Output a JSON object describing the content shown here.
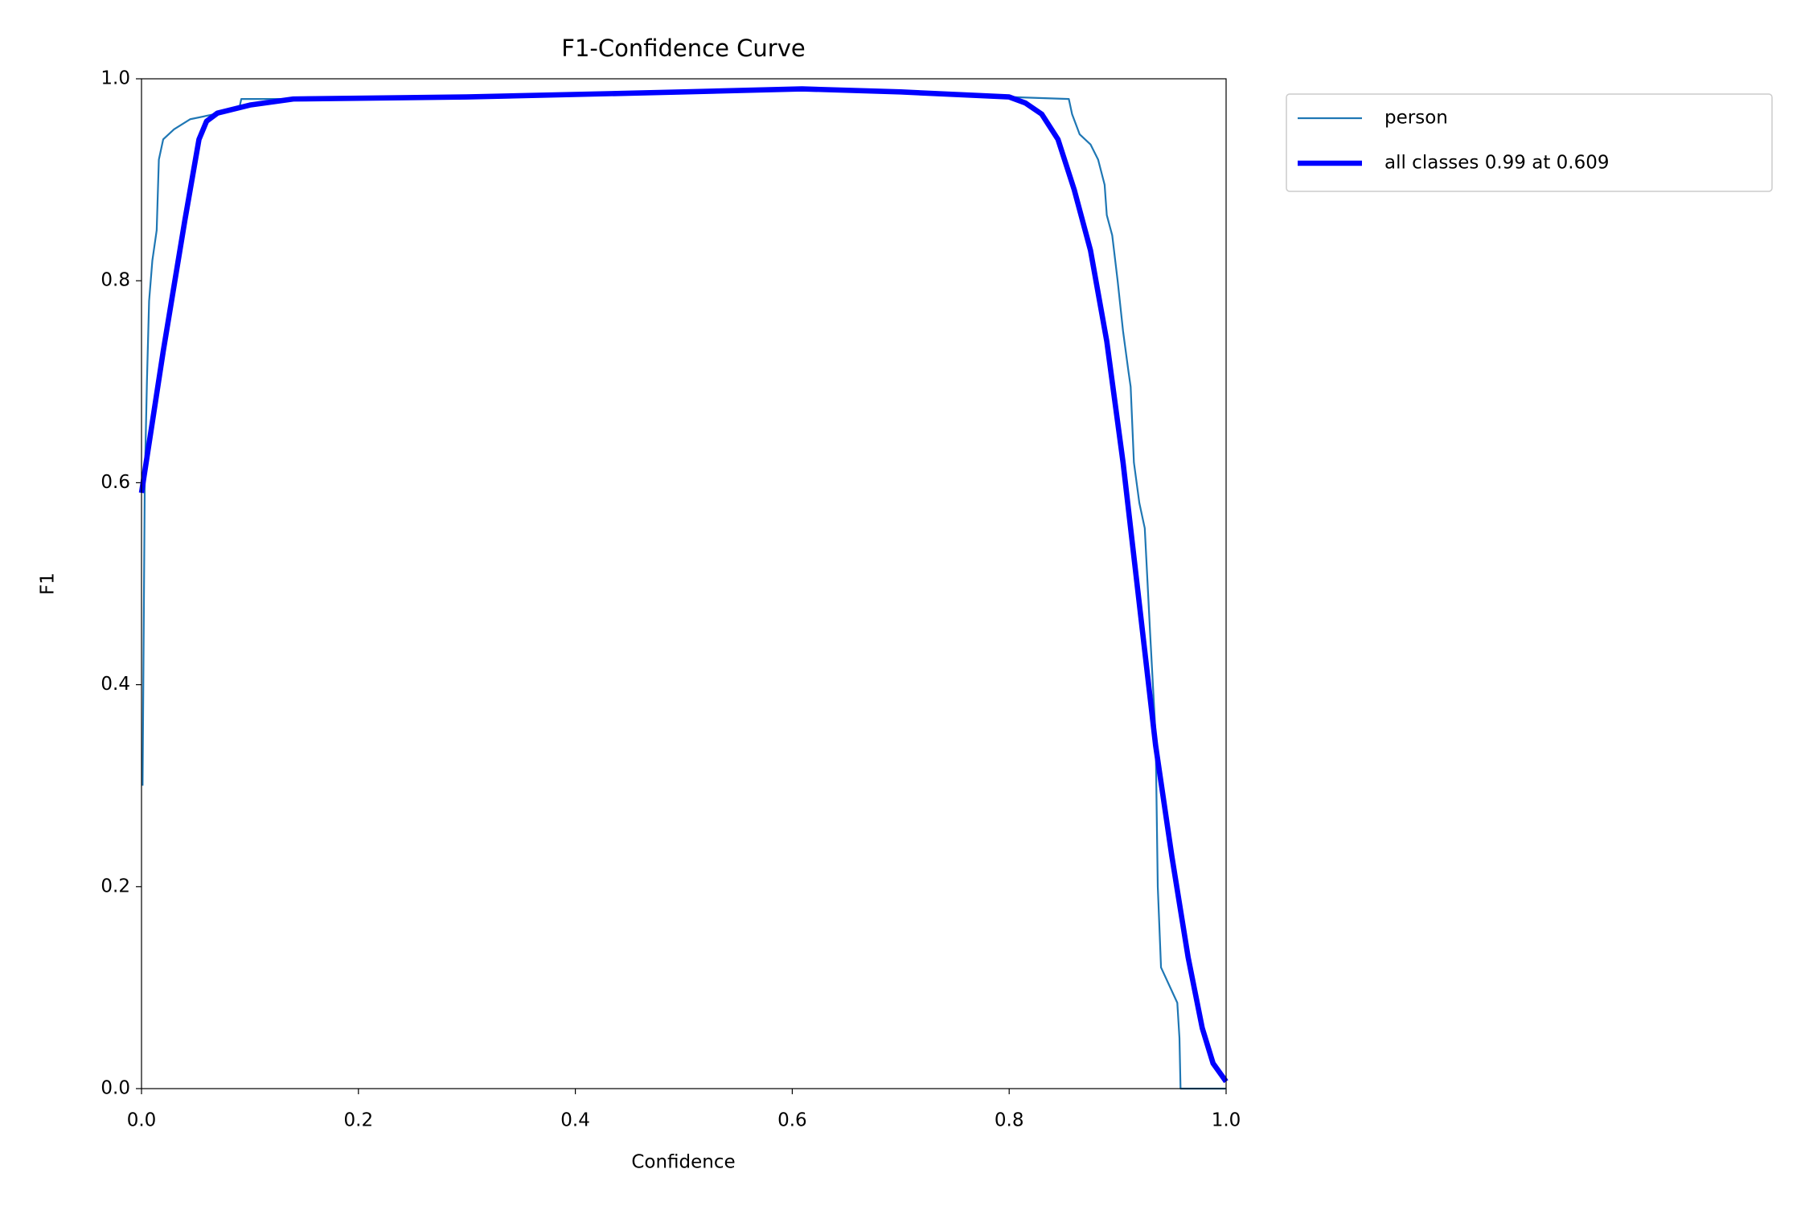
{
  "chart_data": {
    "type": "line",
    "title": "F1-Confidence Curve",
    "xlabel": "Confidence",
    "ylabel": "F1",
    "xlim": [
      0,
      1
    ],
    "ylim": [
      0,
      1
    ],
    "xticks": [
      {
        "value": 0,
        "label": "0.0"
      },
      {
        "value": 0.2,
        "label": "0.2"
      },
      {
        "value": 0.4,
        "label": "0.4"
      },
      {
        "value": 0.6,
        "label": "0.6"
      },
      {
        "value": 0.8,
        "label": "0.8"
      },
      {
        "value": 1,
        "label": "1.0"
      }
    ],
    "yticks": [
      {
        "value": 0,
        "label": "0.0"
      },
      {
        "value": 0.2,
        "label": "0.2"
      },
      {
        "value": 0.4,
        "label": "0.4"
      },
      {
        "value": 0.6,
        "label": "0.6"
      },
      {
        "value": 0.8,
        "label": "0.8"
      },
      {
        "value": 1,
        "label": "1.0"
      }
    ],
    "legend": "outside-upper-right",
    "series": [
      {
        "name": "person",
        "color": "#1f77b4",
        "width": 1,
        "x": [
          0.001,
          0.003,
          0.005,
          0.007,
          0.01,
          0.014,
          0.016,
          0.02,
          0.03,
          0.045,
          0.09,
          0.092,
          0.2,
          0.4,
          0.6,
          0.8,
          0.855,
          0.858,
          0.865,
          0.875,
          0.882,
          0.888,
          0.89,
          0.895,
          0.9,
          0.905,
          0.91,
          0.912,
          0.915,
          0.92,
          0.925,
          0.93,
          0.935,
          0.937,
          0.94,
          0.955,
          0.957,
          0.958,
          1.0
        ],
        "values": [
          0.3,
          0.6,
          0.7,
          0.78,
          0.82,
          0.85,
          0.92,
          0.94,
          0.95,
          0.96,
          0.97,
          0.98,
          0.98,
          0.985,
          0.99,
          0.982,
          0.98,
          0.965,
          0.945,
          0.935,
          0.92,
          0.895,
          0.865,
          0.845,
          0.8,
          0.75,
          0.71,
          0.695,
          0.62,
          0.58,
          0.555,
          0.45,
          0.35,
          0.2,
          0.12,
          0.085,
          0.05,
          0.0,
          0.0
        ]
      },
      {
        "name": "all classes 0.99 at 0.609",
        "color": "#0000ff",
        "width": 3,
        "x": [
          0.0,
          0.02,
          0.04,
          0.053,
          0.06,
          0.07,
          0.1,
          0.14,
          0.3,
          0.5,
          0.609,
          0.7,
          0.8,
          0.815,
          0.83,
          0.845,
          0.86,
          0.875,
          0.89,
          0.905,
          0.92,
          0.935,
          0.95,
          0.965,
          0.978,
          0.988,
          1.0
        ],
        "values": [
          0.59,
          0.73,
          0.86,
          0.94,
          0.958,
          0.966,
          0.974,
          0.98,
          0.982,
          0.987,
          0.99,
          0.987,
          0.982,
          0.976,
          0.965,
          0.94,
          0.89,
          0.83,
          0.74,
          0.62,
          0.48,
          0.34,
          0.23,
          0.13,
          0.06,
          0.025,
          0.007
        ]
      }
    ]
  }
}
